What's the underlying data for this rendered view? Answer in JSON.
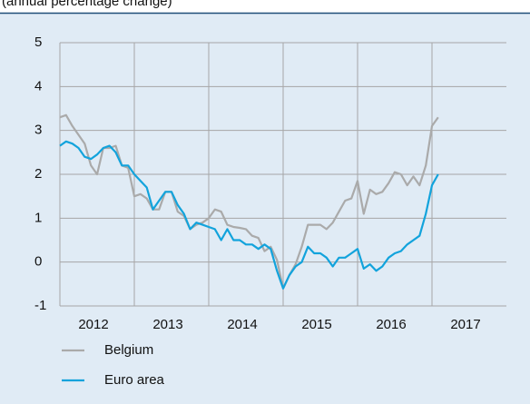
{
  "chart_data": {
    "type": "line",
    "subtitle": "(annual percentage change)",
    "x": [
      2012,
      2012.083,
      2012.167,
      2012.25,
      2012.333,
      2012.417,
      2012.5,
      2012.583,
      2012.667,
      2012.75,
      2012.833,
      2012.917,
      2013,
      2013.083,
      2013.167,
      2013.25,
      2013.333,
      2013.417,
      2013.5,
      2013.583,
      2013.667,
      2013.75,
      2013.833,
      2013.917,
      2014,
      2014.083,
      2014.167,
      2014.25,
      2014.333,
      2014.417,
      2014.5,
      2014.583,
      2014.667,
      2014.75,
      2014.833,
      2014.917,
      2015,
      2015.083,
      2015.167,
      2015.25,
      2015.333,
      2015.417,
      2015.5,
      2015.583,
      2015.667,
      2015.75,
      2015.833,
      2015.917,
      2016,
      2016.083,
      2016.167,
      2016.25,
      2016.333,
      2016.417,
      2016.5,
      2016.583,
      2016.667,
      2016.75,
      2016.833,
      2016.917,
      2017,
      2017.083
    ],
    "series": [
      {
        "name": "Belgium",
        "color": "#aaaaaa",
        "values": [
          3.3,
          3.35,
          3.1,
          2.9,
          2.7,
          2.2,
          2.0,
          2.6,
          2.6,
          2.65,
          2.2,
          2.15,
          1.5,
          1.55,
          1.45,
          1.2,
          1.2,
          1.6,
          1.6,
          1.15,
          1.05,
          0.75,
          0.85,
          0.9,
          1.0,
          1.2,
          1.15,
          0.85,
          0.8,
          0.78,
          0.75,
          0.6,
          0.55,
          0.25,
          0.35,
          0.05,
          -0.6,
          -0.3,
          -0.05,
          0.35,
          0.85,
          0.85,
          0.85,
          0.75,
          0.9,
          1.15,
          1.4,
          1.45,
          1.85,
          1.1,
          1.65,
          1.55,
          1.6,
          1.8,
          2.05,
          2.0,
          1.75,
          1.95,
          1.75,
          2.2,
          3.1,
          3.3
        ]
      },
      {
        "name": "Euro area",
        "color": "#12a3dc",
        "values": [
          2.65,
          2.75,
          2.7,
          2.6,
          2.4,
          2.35,
          2.45,
          2.6,
          2.65,
          2.5,
          2.2,
          2.2,
          2.0,
          1.85,
          1.7,
          1.2,
          1.4,
          1.6,
          1.6,
          1.3,
          1.1,
          0.75,
          0.9,
          0.85,
          0.8,
          0.75,
          0.5,
          0.75,
          0.5,
          0.5,
          0.4,
          0.4,
          0.3,
          0.4,
          0.3,
          -0.2,
          -0.6,
          -0.3,
          -0.1,
          0.0,
          0.35,
          0.2,
          0.2,
          0.1,
          -0.1,
          0.1,
          0.1,
          0.2,
          0.3,
          -0.15,
          -0.05,
          -0.2,
          -0.1,
          0.1,
          0.2,
          0.25,
          0.4,
          0.5,
          0.6,
          1.1,
          1.75,
          2.0
        ]
      }
    ],
    "xlim": [
      2012,
      2018
    ],
    "xticks": [
      2013,
      2014,
      2015,
      2016,
      2017
    ],
    "year_labels": [
      2012,
      2013,
      2014,
      2015,
      2016,
      2017
    ],
    "ylim": [
      -1,
      5
    ],
    "yticks": [
      -1,
      0,
      1,
      2,
      3,
      4,
      5
    ],
    "grid": true,
    "legend": "bottom"
  }
}
